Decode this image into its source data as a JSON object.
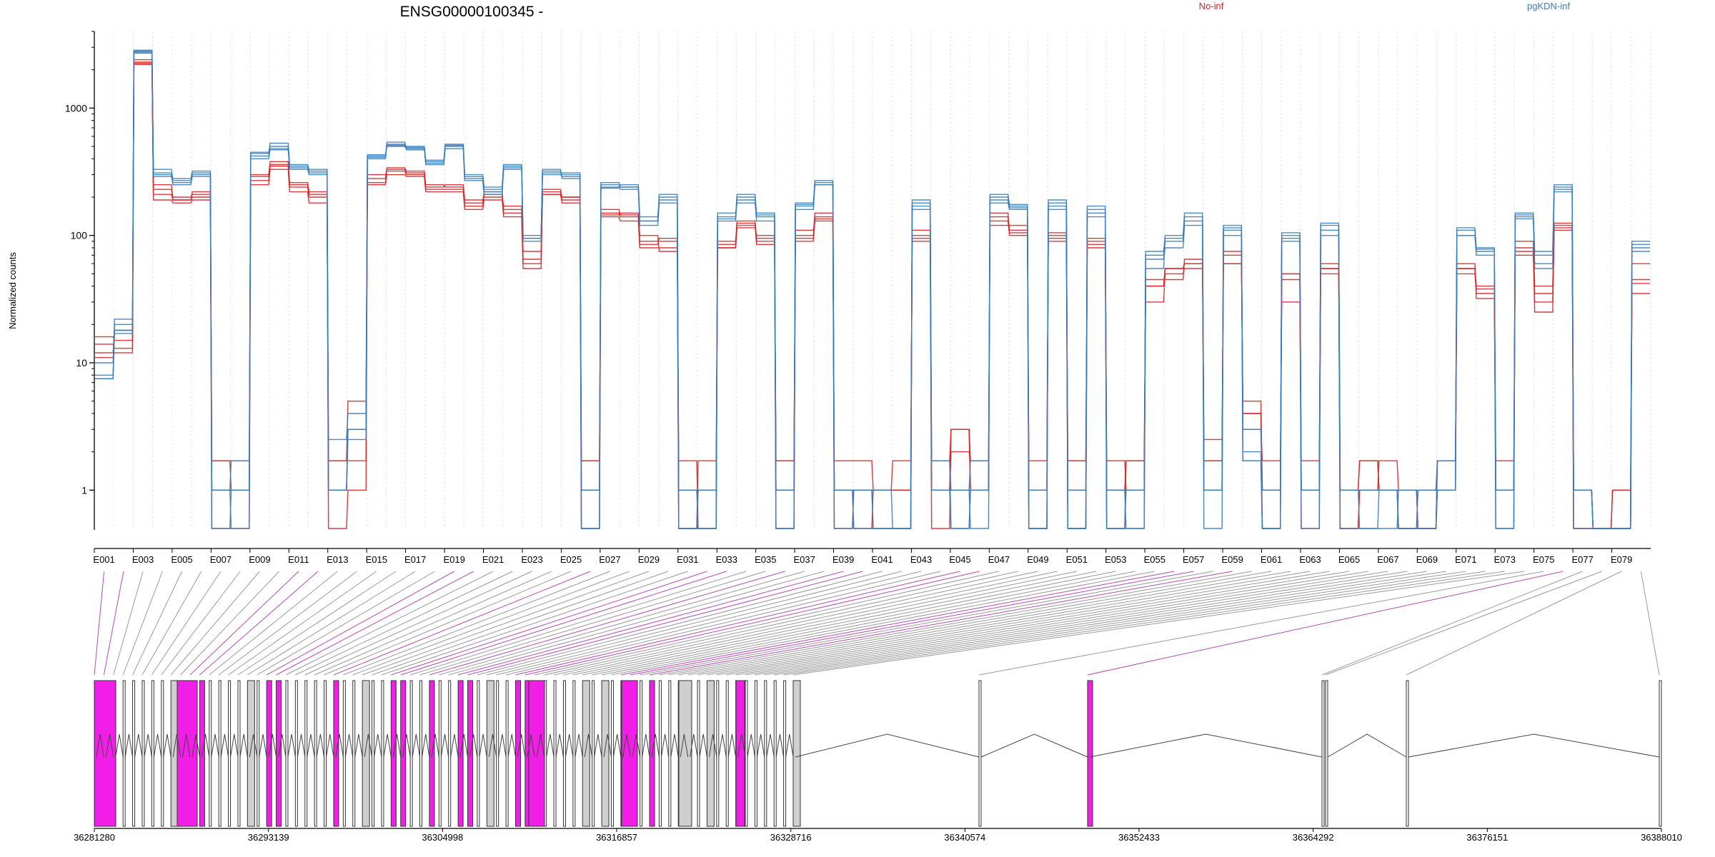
{
  "title": "ENSG00000100345 -",
  "ylabel": "Normalized counts",
  "legend": [
    {
      "label": "No-inf",
      "color": "#d62728"
    },
    {
      "label": "pgKDN-inf",
      "color": "#3a7db8"
    }
  ],
  "colors": {
    "magenta": "#f01ee6",
    "gray": "#cfcfcf",
    "connector_gray": "#999999",
    "connector_magenta": "#b44ab4"
  },
  "chart_data": {
    "type": "line",
    "yscale": "log",
    "ylim": [
      0.5,
      4000
    ],
    "yticks": [
      1,
      10,
      100,
      1000
    ],
    "ytick_labels": [
      "1",
      "10",
      "100",
      "1000"
    ],
    "xtick_labels": [
      "E001",
      "E003",
      "E005",
      "E007",
      "E009",
      "E011",
      "E013",
      "E015",
      "E017",
      "E019",
      "E021",
      "E023",
      "E025",
      "E027",
      "E029",
      "E031",
      "E033",
      "E035",
      "E037",
      "E039",
      "E041",
      "E043",
      "E045",
      "E047",
      "E049",
      "E051",
      "E053",
      "E055",
      "E057",
      "E059",
      "E061",
      "E063",
      "E065",
      "E067",
      "E069",
      "E071",
      "E073",
      "E075",
      "E077",
      "E079"
    ],
    "exon_count": 80,
    "series": [
      {
        "group": "No-inf",
        "values": [
          11,
          12,
          2300,
          210,
          190,
          200,
          0.5,
          0.5,
          290,
          380,
          240,
          200,
          0.5,
          1,
          280,
          330,
          310,
          250,
          240,
          180,
          220,
          160,
          65,
          220,
          190,
          1.7,
          150,
          140,
          90,
          90,
          0.5,
          1,
          85,
          130,
          90,
          1.7,
          100,
          140,
          1,
          0.5,
          1,
          1,
          100,
          0.5,
          3,
          1,
          150,
          110,
          0.5,
          100,
          1.7,
          85,
          0.5,
          1.7,
          40,
          55,
          60,
          2.5,
          60,
          4,
          1,
          50,
          0.5,
          55,
          1,
          1.7,
          1,
          0.5,
          0.5,
          1,
          55,
          35,
          1,
          80,
          25,
          120,
          1,
          0.5,
          0.5,
          45
        ]
      },
      {
        "group": "No-inf",
        "values": [
          14,
          13,
          2250,
          190,
          180,
          190,
          1.7,
          1.7,
          250,
          330,
          220,
          180,
          1.7,
          1.7,
          250,
          300,
          290,
          220,
          220,
          160,
          190,
          140,
          60,
          210,
          180,
          0.5,
          140,
          130,
          80,
          80,
          0.5,
          1.7,
          80,
          120,
          85,
          0.5,
          90,
          130,
          1.7,
          1.7,
          1,
          1,
          110,
          1.7,
          3,
          1.7,
          140,
          100,
          1,
          95,
          0.5,
          80,
          1.7,
          1,
          30,
          50,
          55,
          1.7,
          75,
          3,
          1.7,
          30,
          1.7,
          60,
          0.5,
          1,
          1.7,
          1,
          0.5,
          1.7,
          60,
          32,
          1,
          70,
          35,
          110,
          0.5,
          0.5,
          1,
          35
        ]
      },
      {
        "group": "No-inf",
        "values": [
          16,
          15,
          2200,
          230,
          200,
          210,
          1,
          1,
          270,
          350,
          250,
          210,
          1,
          3,
          300,
          320,
          300,
          230,
          230,
          170,
          210,
          150,
          55,
          230,
          200,
          1,
          145,
          150,
          100,
          75,
          1.7,
          0.5,
          90,
          125,
          95,
          1,
          95,
          150,
          1,
          1,
          1,
          1,
          90,
          1,
          2,
          1.7,
          120,
          120,
          1.7,
          90,
          1.7,
          95,
          1,
          1.7,
          45,
          45,
          65,
          1.7,
          70,
          5,
          1,
          50,
          1,
          50,
          1,
          1.7,
          1,
          1,
          0.5,
          1.7,
          50,
          38,
          1.7,
          90,
          40,
          125,
          0.5,
          0.5,
          1,
          60
        ]
      },
      {
        "group": "No-inf",
        "values": [
          12,
          18,
          2400,
          250,
          190,
          220,
          1.7,
          1,
          300,
          360,
          260,
          220,
          1.7,
          5,
          260,
          340,
          320,
          240,
          250,
          190,
          200,
          170,
          75,
          210,
          200,
          1.7,
          160,
          145,
          85,
          95,
          1,
          1,
          80,
          115,
          100,
          1.7,
          110,
          135,
          0.5,
          1,
          1,
          1.7,
          95,
          1,
          3,
          1,
          130,
          105,
          1,
          105,
          1,
          90,
          1,
          1,
          40,
          55,
          60,
          1,
          60,
          4,
          0.5,
          45,
          1,
          55,
          0.5,
          1,
          1,
          0.5,
          1,
          1.7,
          55,
          40,
          1,
          75,
          30,
          115,
          1,
          0.5,
          0.5,
          42
        ]
      },
      {
        "group": "pgKDN-inf",
        "values": [
          8,
          17,
          2800,
          330,
          270,
          310,
          1,
          0.5,
          420,
          480,
          350,
          320,
          2.5,
          4,
          420,
          520,
          500,
          390,
          500,
          290,
          230,
          350,
          95,
          320,
          300,
          0.5,
          250,
          240,
          130,
          200,
          0.5,
          0.5,
          140,
          200,
          140,
          1,
          180,
          260,
          1,
          0.5,
          0.5,
          0.5,
          180,
          1.7,
          0.5,
          1,
          200,
          170,
          0.5,
          180,
          0.5,
          160,
          1,
          0.5,
          70,
          100,
          140,
          1,
          120,
          1.7,
          0.5,
          100,
          1,
          120,
          1,
          1,
          1,
          0.5,
          0.5,
          1,
          110,
          75,
          0.5,
          140,
          70,
          240,
          1,
          0.5,
          0.5,
          80
        ]
      },
      {
        "group": "pgKDN-inf",
        "values": [
          7.5,
          22,
          2750,
          300,
          250,
          300,
          1,
          1.7,
          450,
          500,
          330,
          300,
          1,
          3,
          430,
          500,
          480,
          360,
          480,
          270,
          210,
          330,
          95,
          300,
          290,
          1,
          240,
          230,
          120,
          180,
          1,
          1,
          150,
          180,
          130,
          0.5,
          170,
          250,
          0.5,
          1,
          0.5,
          0.5,
          170,
          1,
          0.5,
          1,
          190,
          165,
          0.5,
          170,
          0.5,
          150,
          0.5,
          1,
          55,
          90,
          130,
          1,
          110,
          2,
          0.5,
          90,
          0.5,
          110,
          0.5,
          0.5,
          0.5,
          1,
          1,
          1.7,
          100,
          70,
          1,
          135,
          55,
          220,
          0.5,
          0.5,
          0.5,
          85
        ]
      },
      {
        "group": "pgKDN-inf",
        "values": [
          10,
          20,
          2850,
          310,
          280,
          320,
          0.5,
          1,
          400,
          470,
          340,
          310,
          1,
          2.5,
          410,
          510,
          490,
          370,
          510,
          280,
          220,
          340,
          90,
          310,
          310,
          1,
          235,
          250,
          140,
          190,
          0.5,
          1,
          130,
          190,
          150,
          1,
          160,
          250,
          1,
          1,
          0.5,
          0.5,
          160,
          1,
          1,
          1.7,
          180,
          160,
          1,
          160,
          1,
          140,
          1,
          1,
          65,
          80,
          120,
          0.5,
          100,
          3,
          1,
          95,
          1,
          100,
          1,
          0.5,
          1,
          0.5,
          1,
          1,
          100,
          80,
          1,
          150,
          60,
          230,
          1,
          0.5,
          0.5,
          75
        ]
      },
      {
        "group": "pgKDN-inf",
        "values": [
          7.5,
          18,
          2700,
          290,
          260,
          290,
          1,
          1,
          440,
          530,
          360,
          330,
          1,
          3,
          400,
          540,
          470,
          380,
          520,
          300,
          240,
          360,
          100,
          330,
          280,
          0.5,
          260,
          240,
          130,
          210,
          1,
          0.5,
          135,
          210,
          145,
          0.5,
          175,
          270,
          1,
          1,
          1,
          0.5,
          190,
          1.7,
          1,
          0.5,
          210,
          175,
          0.5,
          190,
          0.5,
          170,
          0.5,
          0.5,
          75,
          95,
          150,
          1,
          115,
          1.7,
          0.5,
          105,
          1,
          125,
          1,
          1,
          1,
          1,
          0.5,
          1.7,
          115,
          78,
          0.5,
          145,
          75,
          250,
          1,
          0.5,
          0.5,
          90
        ]
      }
    ],
    "exon_types": [
      "m",
      "m",
      "k",
      "k",
      "k",
      "k",
      "k",
      "k",
      "g",
      "k",
      "m",
      "m",
      "k",
      "k",
      "k",
      "k",
      "g",
      "k",
      "m",
      "m",
      "k",
      "k",
      "k",
      "k",
      "k",
      "m",
      "k",
      "k",
      "g",
      "k",
      "k",
      "m",
      "m",
      "k",
      "k",
      "m",
      "k",
      "k",
      "m",
      "m",
      "k",
      "g",
      "k",
      "k",
      "m",
      "m",
      "k",
      "k",
      "k",
      "k",
      "k",
      "g",
      "k",
      "g",
      "k",
      "m",
      "m",
      "k",
      "m",
      "k",
      "k",
      "g",
      "k",
      "k",
      "g",
      "k",
      "k",
      "g",
      "k",
      "k",
      "k",
      "k",
      "k",
      "g",
      "k",
      "m",
      "k",
      "k",
      "k",
      "k"
    ],
    "genomic_ticks": [
      "36281280",
      "36293139",
      "36304998",
      "36316857",
      "36328716",
      "36340574",
      "36352433",
      "36364292",
      "36376151",
      "36388010"
    ]
  }
}
